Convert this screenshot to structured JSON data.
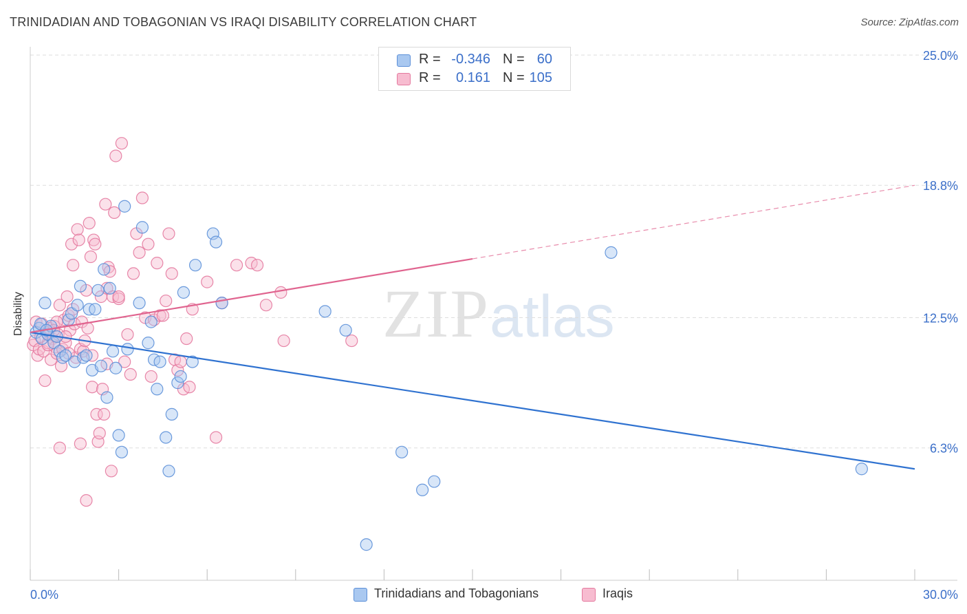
{
  "title": "TRINIDADIAN AND TOBAGONIAN VS IRAQI DISABILITY CORRELATION CHART",
  "source": "Source: ZipAtlas.com",
  "watermark": {
    "zip": "ZIP",
    "atlas": "atlas"
  },
  "stats": [
    {
      "r_label": "R =",
      "r_value": "-0.346",
      "n_label": "N =",
      "n_value": "60"
    },
    {
      "r_label": "R =",
      "r_value": "0.161",
      "n_label": "N =",
      "n_value": "105"
    }
  ],
  "legend": [
    {
      "label": "Trinidadians and Tobagonians"
    },
    {
      "label": "Iraqis"
    }
  ],
  "colors": {
    "blue_fill": "#a9c8f0",
    "blue_stroke": "#5b8fd8",
    "blue_line": "#2f72d0",
    "pink_fill": "#f7bcd0",
    "pink_stroke": "#e4799e",
    "pink_line": "#e0648f",
    "tick_text": "#3b6fc9",
    "grid": "#dddddd"
  },
  "chart_data": {
    "type": "scatter",
    "title": "TRINIDADIAN AND TOBAGONIAN VS IRAQI DISABILITY CORRELATION CHART",
    "xlabel": "",
    "ylabel": "Disability",
    "xlim": [
      0,
      30
    ],
    "ylim": [
      0,
      25
    ],
    "x_tick_labels": [
      {
        "value": 0,
        "label": "0.0%"
      },
      {
        "value": 30,
        "label": "30.0%"
      }
    ],
    "y_tick_labels": [
      {
        "value": 6.3,
        "label": "6.3%"
      },
      {
        "value": 12.5,
        "label": "12.5%"
      },
      {
        "value": 18.8,
        "label": "18.8%"
      },
      {
        "value": 25.0,
        "label": "25.0%"
      }
    ],
    "grid": true,
    "series": [
      {
        "name": "Trinidadians and Tobagonians",
        "trend": {
          "x": [
            0,
            30
          ],
          "y": [
            11.8,
            5.3
          ],
          "solid_to": 30
        },
        "points": [
          [
            0.2,
            11.8
          ],
          [
            0.3,
            12.0
          ],
          [
            0.4,
            11.5
          ],
          [
            0.5,
            13.2
          ],
          [
            0.6,
            11.7
          ],
          [
            0.7,
            12.1
          ],
          [
            0.8,
            11.3
          ],
          [
            0.9,
            11.6
          ],
          [
            1.0,
            10.9
          ],
          [
            1.1,
            10.6
          ],
          [
            1.2,
            10.7
          ],
          [
            1.3,
            12.4
          ],
          [
            1.4,
            12.7
          ],
          [
            1.5,
            10.4
          ],
          [
            1.6,
            13.1
          ],
          [
            1.7,
            14.0
          ],
          [
            1.8,
            10.6
          ],
          [
            1.9,
            10.7
          ],
          [
            2.0,
            12.9
          ],
          [
            2.1,
            10.0
          ],
          [
            2.2,
            12.9
          ],
          [
            2.3,
            13.8
          ],
          [
            2.4,
            10.2
          ],
          [
            2.5,
            14.8
          ],
          [
            2.6,
            8.7
          ],
          [
            2.7,
            13.9
          ],
          [
            2.8,
            10.9
          ],
          [
            2.9,
            10.1
          ],
          [
            3.0,
            6.9
          ],
          [
            3.1,
            6.1
          ],
          [
            3.2,
            17.8
          ],
          [
            3.3,
            11.0
          ],
          [
            3.7,
            13.2
          ],
          [
            3.8,
            16.8
          ],
          [
            4.0,
            11.3
          ],
          [
            4.1,
            12.3
          ],
          [
            4.2,
            10.5
          ],
          [
            4.3,
            9.1
          ],
          [
            4.4,
            10.4
          ],
          [
            4.6,
            6.8
          ],
          [
            4.7,
            5.2
          ],
          [
            4.8,
            7.9
          ],
          [
            5.0,
            9.4
          ],
          [
            5.1,
            9.7
          ],
          [
            5.2,
            13.7
          ],
          [
            5.5,
            10.4
          ],
          [
            5.6,
            15.0
          ],
          [
            6.2,
            16.5
          ],
          [
            6.3,
            16.1
          ],
          [
            6.5,
            13.2
          ],
          [
            10.0,
            12.8
          ],
          [
            10.7,
            11.9
          ],
          [
            11.4,
            1.7
          ],
          [
            12.6,
            6.1
          ],
          [
            13.3,
            4.3
          ],
          [
            13.7,
            4.7
          ],
          [
            19.7,
            15.6
          ],
          [
            28.2,
            5.3
          ],
          [
            0.35,
            12.2
          ],
          [
            0.55,
            11.9
          ]
        ]
      },
      {
        "name": "Iraqis",
        "trend": {
          "x": [
            0,
            30
          ],
          "y": [
            11.8,
            18.8
          ],
          "solid_to": 15
        },
        "points": [
          [
            0.1,
            11.2
          ],
          [
            0.15,
            11.4
          ],
          [
            0.2,
            12.3
          ],
          [
            0.25,
            10.7
          ],
          [
            0.3,
            11.0
          ],
          [
            0.35,
            11.6
          ],
          [
            0.4,
            12.2
          ],
          [
            0.45,
            10.9
          ],
          [
            0.5,
            9.5
          ],
          [
            0.55,
            11.8
          ],
          [
            0.6,
            11.3
          ],
          [
            0.65,
            12.0
          ],
          [
            0.7,
            10.5
          ],
          [
            0.75,
            11.5
          ],
          [
            0.8,
            12.1
          ],
          [
            0.85,
            11.1
          ],
          [
            0.9,
            10.8
          ],
          [
            0.95,
            11.7
          ],
          [
            1.0,
            13.1
          ],
          [
            1.05,
            10.2
          ],
          [
            1.1,
            11.0
          ],
          [
            1.15,
            12.4
          ],
          [
            1.2,
            11.3
          ],
          [
            1.25,
            13.5
          ],
          [
            1.3,
            12.6
          ],
          [
            1.35,
            11.9
          ],
          [
            1.4,
            16.0
          ],
          [
            1.45,
            15.0
          ],
          [
            1.5,
            12.2
          ],
          [
            1.55,
            10.6
          ],
          [
            1.6,
            16.7
          ],
          [
            1.65,
            16.2
          ],
          [
            1.7,
            11.0
          ],
          [
            1.75,
            12.3
          ],
          [
            1.8,
            10.9
          ],
          [
            1.85,
            11.4
          ],
          [
            1.9,
            13.8
          ],
          [
            1.95,
            12.0
          ],
          [
            2.0,
            17.0
          ],
          [
            2.05,
            15.4
          ],
          [
            2.1,
            9.2
          ],
          [
            2.15,
            16.2
          ],
          [
            2.2,
            16.0
          ],
          [
            2.25,
            7.9
          ],
          [
            2.3,
            6.6
          ],
          [
            2.35,
            7.0
          ],
          [
            2.4,
            13.5
          ],
          [
            2.45,
            9.1
          ],
          [
            2.5,
            7.9
          ],
          [
            2.55,
            17.9
          ],
          [
            2.6,
            13.9
          ],
          [
            2.65,
            14.9
          ],
          [
            2.7,
            14.7
          ],
          [
            2.75,
            5.2
          ],
          [
            2.8,
            13.5
          ],
          [
            2.85,
            17.5
          ],
          [
            2.9,
            20.2
          ],
          [
            3.0,
            13.4
          ],
          [
            3.1,
            20.8
          ],
          [
            3.2,
            10.4
          ],
          [
            3.3,
            11.7
          ],
          [
            3.4,
            9.8
          ],
          [
            3.5,
            14.6
          ],
          [
            3.6,
            16.5
          ],
          [
            3.7,
            15.6
          ],
          [
            3.8,
            18.2
          ],
          [
            3.9,
            12.5
          ],
          [
            4.0,
            16.0
          ],
          [
            4.1,
            9.7
          ],
          [
            4.2,
            12.4
          ],
          [
            4.3,
            15.1
          ],
          [
            4.4,
            12.6
          ],
          [
            4.5,
            12.6
          ],
          [
            4.6,
            13.3
          ],
          [
            4.7,
            16.5
          ],
          [
            4.8,
            14.6
          ],
          [
            4.9,
            10.5
          ],
          [
            5.0,
            10.0
          ],
          [
            5.1,
            10.4
          ],
          [
            5.2,
            9.1
          ],
          [
            5.3,
            11.5
          ],
          [
            5.4,
            9.2
          ],
          [
            5.5,
            12.9
          ],
          [
            6.0,
            14.2
          ],
          [
            6.3,
            6.8
          ],
          [
            6.5,
            13.2
          ],
          [
            7.0,
            15.0
          ],
          [
            7.5,
            15.1
          ],
          [
            7.7,
            15.0
          ],
          [
            8.0,
            13.1
          ],
          [
            8.5,
            13.7
          ],
          [
            8.6,
            11.4
          ],
          [
            10.9,
            11.4
          ],
          [
            1.0,
            6.3
          ],
          [
            1.7,
            6.5
          ],
          [
            1.9,
            3.8
          ],
          [
            2.1,
            10.7
          ],
          [
            1.2,
            11.6
          ],
          [
            0.9,
            12.3
          ],
          [
            1.45,
            12.9
          ],
          [
            0.6,
            11.2
          ],
          [
            3.0,
            13.5
          ],
          [
            1.3,
            10.8
          ],
          [
            2.6,
            10.3
          ],
          [
            0.8,
            11.9
          ]
        ]
      }
    ]
  }
}
